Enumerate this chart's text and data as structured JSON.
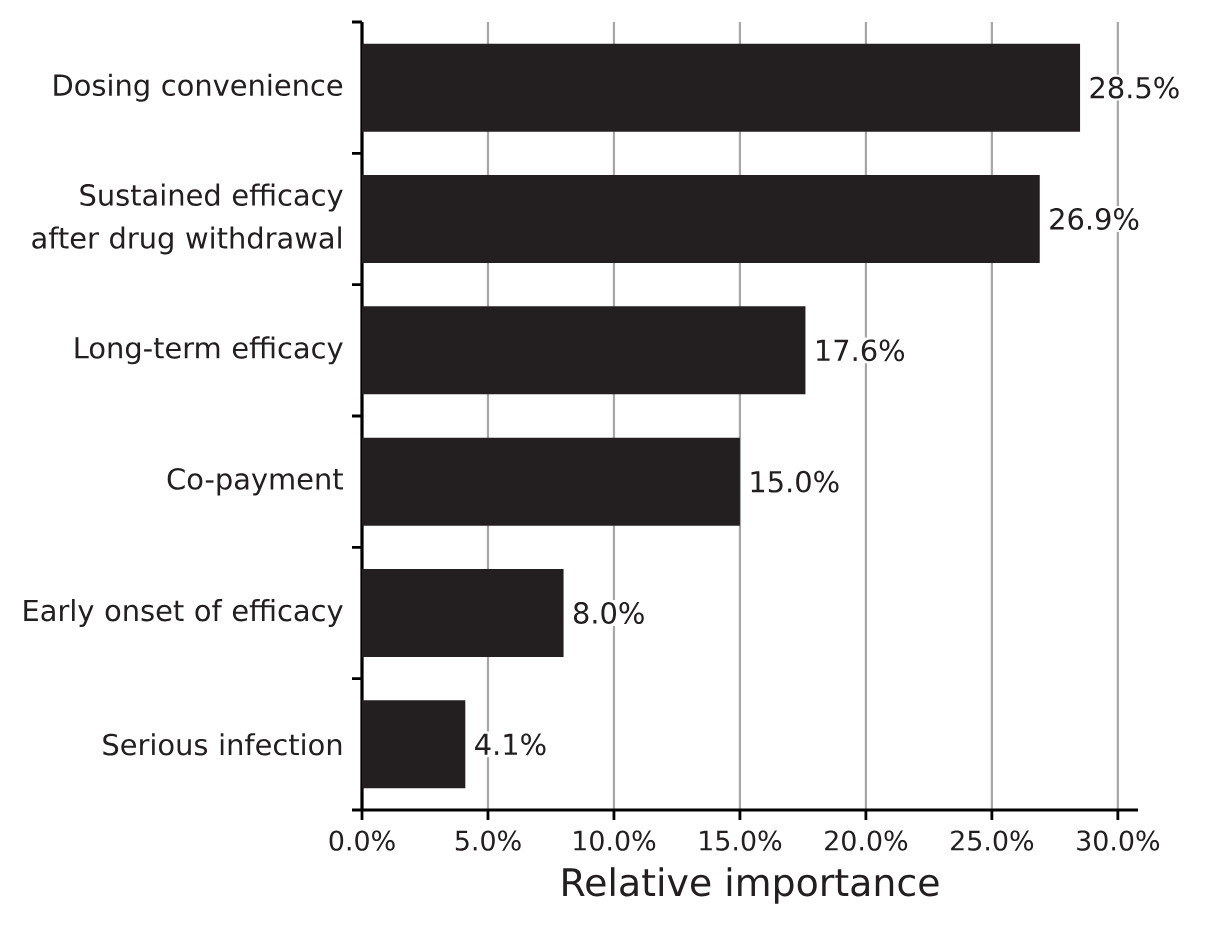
{
  "chart_data": {
    "type": "bar",
    "orientation": "horizontal",
    "categories": [
      "Dosing convenience",
      "Sustained efficacy after drug withdrawal",
      "Long-term efficacy",
      "Co-payment",
      "Early onset of efficacy",
      "Serious infection"
    ],
    "values": [
      28.5,
      26.9,
      17.6,
      15.0,
      8.0,
      4.1
    ],
    "value_labels": [
      "28.5%",
      "26.9%",
      "17.6%",
      "15.0%",
      "8.0%",
      "4.1%"
    ],
    "color": "#231f20",
    "xlabel": "Relative importance",
    "xlim": [
      0,
      30.8
    ],
    "xticks": [
      {
        "value": 0,
        "label": "0.0%"
      },
      {
        "value": 5,
        "label": "5.0%"
      },
      {
        "value": 10,
        "label": "10.0%"
      },
      {
        "value": 15,
        "label": "15.0%"
      },
      {
        "value": 20,
        "label": "20.0%"
      },
      {
        "value": 25,
        "label": "25.0%"
      },
      {
        "value": 30,
        "label": "30.0%"
      }
    ],
    "grid": "x"
  }
}
